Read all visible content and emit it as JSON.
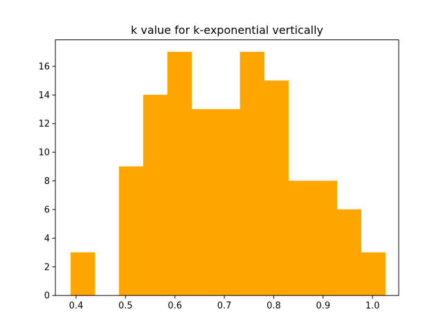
{
  "chart_data": {
    "type": "bar",
    "subtype": "histogram",
    "title": "k value for k-exponential vertically",
    "xlabel": "",
    "ylabel": "",
    "xlim": [
      0.358,
      1.053
    ],
    "ylim": [
      0,
      17.85
    ],
    "x_ticks": [
      {
        "value": 0.4,
        "label": "0.4"
      },
      {
        "value": 0.5,
        "label": "0.5"
      },
      {
        "value": 0.6,
        "label": "0.6"
      },
      {
        "value": 0.7,
        "label": "0.7"
      },
      {
        "value": 0.8,
        "label": "0.8"
      },
      {
        "value": 0.9,
        "label": "0.9"
      },
      {
        "value": 1.0,
        "label": "1.0"
      }
    ],
    "y_ticks": [
      {
        "value": 0,
        "label": "0"
      },
      {
        "value": 2,
        "label": "2"
      },
      {
        "value": 4,
        "label": "4"
      },
      {
        "value": 6,
        "label": "6"
      },
      {
        "value": 8,
        "label": "8"
      },
      {
        "value": 10,
        "label": "10"
      },
      {
        "value": 12,
        "label": "12"
      },
      {
        "value": 14,
        "label": "14"
      },
      {
        "value": 16,
        "label": "16"
      }
    ],
    "bins": [
      {
        "start": 0.389,
        "end": 0.438,
        "count": 3
      },
      {
        "start": 0.438,
        "end": 0.487,
        "count": 0
      },
      {
        "start": 0.487,
        "end": 0.536,
        "count": 9
      },
      {
        "start": 0.536,
        "end": 0.585,
        "count": 14
      },
      {
        "start": 0.585,
        "end": 0.634,
        "count": 17
      },
      {
        "start": 0.634,
        "end": 0.683,
        "count": 13
      },
      {
        "start": 0.683,
        "end": 0.732,
        "count": 13
      },
      {
        "start": 0.732,
        "end": 0.781,
        "count": 17
      },
      {
        "start": 0.781,
        "end": 0.83,
        "count": 15
      },
      {
        "start": 0.83,
        "end": 0.879,
        "count": 8
      },
      {
        "start": 0.879,
        "end": 0.928,
        "count": 8
      },
      {
        "start": 0.928,
        "end": 0.977,
        "count": 6
      },
      {
        "start": 0.977,
        "end": 1.026,
        "count": 3
      }
    ],
    "bar_color": "#ffa500",
    "grid": false,
    "legend": "none"
  }
}
